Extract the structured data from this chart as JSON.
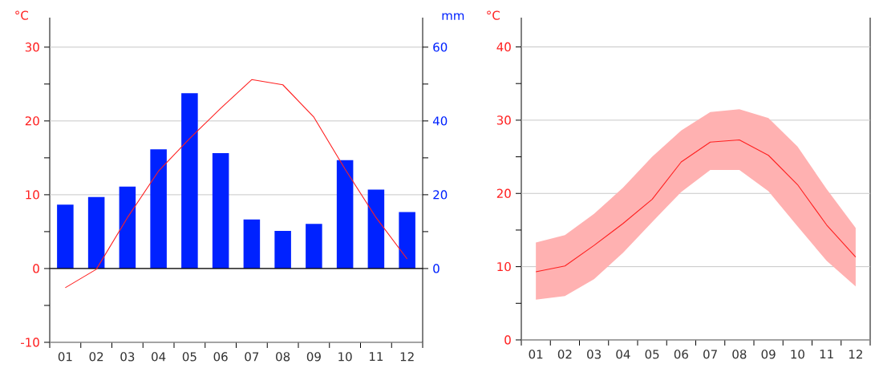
{
  "chart_data": [
    {
      "type": "bar",
      "categories": [
        "01",
        "02",
        "03",
        "04",
        "05",
        "06",
        "07",
        "08",
        "09",
        "10",
        "11",
        "12"
      ],
      "ylabel": "°C",
      "y2label": "mm",
      "ylim": [
        -10,
        34
      ],
      "yticks": [
        -10,
        {
          "value": -5,
          "label": null
        },
        0,
        {
          "value": 5,
          "label": null
        },
        10,
        {
          "value": 15,
          "label": null
        },
        20,
        {
          "value": 25,
          "label": null
        },
        30
      ],
      "y2lim": [
        -20,
        68
      ],
      "y2ticks": [
        0,
        {
          "value": 10,
          "label": null
        },
        20,
        {
          "value": 30,
          "label": null
        },
        40,
        {
          "value": 50,
          "label": null
        },
        60
      ],
      "grid": "y",
      "series": [
        {
          "axis": "y2",
          "color": "#0022ff",
          "values": [
            17.3,
            19.4,
            22.2,
            32.3,
            47.5,
            31.3,
            13.3,
            10.2,
            12.1,
            29.4,
            21.4,
            15.3
          ]
        },
        {
          "type": "line",
          "color": "#ff2020",
          "values": [
            -2.6,
            -0.1,
            6.9,
            13.2,
            17.6,
            21.7,
            25.6,
            24.9,
            20.5,
            13.5,
            6.9,
            1.3
          ]
        }
      ]
    },
    {
      "type": "line",
      "categories": [
        "01",
        "02",
        "03",
        "04",
        "05",
        "06",
        "07",
        "08",
        "09",
        "10",
        "11",
        "12"
      ],
      "ylabel": "°C",
      "ylim": [
        0,
        44
      ],
      "yticks": [
        0,
        {
          "value": 5,
          "label": null
        },
        10,
        {
          "value": 15,
          "label": null
        },
        20,
        {
          "value": 25,
          "label": null
        },
        30,
        {
          "value": 35,
          "label": null
        },
        40
      ],
      "grid": "y",
      "series": [
        {
          "color": "#ff2020",
          "values": [
            9.3,
            10.1,
            12.9,
            15.9,
            19.2,
            24.3,
            27.0,
            27.3,
            25.2,
            21.2,
            15.7,
            11.3
          ],
          "lower": [
            5.5,
            6.0,
            8.3,
            11.9,
            16.1,
            20.2,
            23.2,
            23.2,
            20.3,
            15.5,
            10.8,
            7.3
          ],
          "upper": [
            13.3,
            14.3,
            17.2,
            20.8,
            25.0,
            28.6,
            31.1,
            31.5,
            30.3,
            26.4,
            20.6,
            15.3
          ]
        }
      ]
    }
  ]
}
